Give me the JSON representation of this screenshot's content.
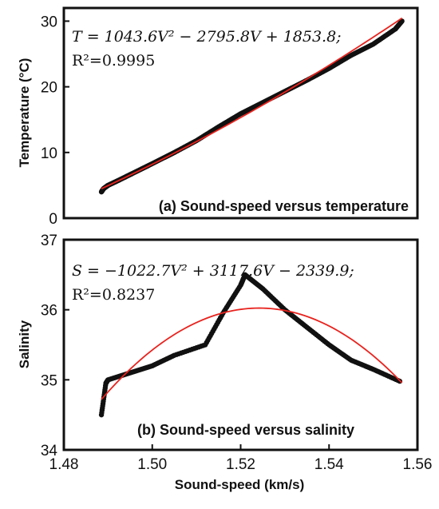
{
  "chart_data": [
    {
      "type": "scatter",
      "panel": "a",
      "title": "(a) Sound-speed versus temperature",
      "ylabel": "Temperature (°C)",
      "xlabel": "",
      "xlim": [
        1.48,
        1.56
      ],
      "ylim": [
        0,
        32
      ],
      "yticks": [
        0,
        10,
        20,
        30
      ],
      "xticks": [],
      "equation": "T = 1043.6V² − 2795.8V + 1853.8;",
      "r2": "R²=0.9995",
      "observed": {
        "x": [
          1.4885,
          1.489,
          1.49,
          1.4925,
          1.4955,
          1.5,
          1.505,
          1.51,
          1.515,
          1.52,
          1.525,
          1.53,
          1.535,
          1.54,
          1.545,
          1.55,
          1.555,
          1.5565
        ],
        "y": [
          4.0,
          4.5,
          5.0,
          5.8,
          6.8,
          8.3,
          10.0,
          11.8,
          13.9,
          15.9,
          17.6,
          19.3,
          21.0,
          22.8,
          24.8,
          26.5,
          28.8,
          30.0
        ]
      },
      "fit": {
        "a": 1043.6,
        "b": -2795.8,
        "c": 1853.8,
        "domain": [
          1.4885,
          1.5565
        ]
      }
    },
    {
      "type": "scatter",
      "panel": "b",
      "title": "(b) Sound-speed versus salinity",
      "ylabel": "Salinity",
      "xlabel": "Sound-speed (km/s)",
      "xlim": [
        1.48,
        1.56
      ],
      "ylim": [
        34,
        37
      ],
      "yticks": [
        34,
        35,
        36,
        37
      ],
      "xticks": [
        1.48,
        1.5,
        1.52,
        1.54,
        1.56
      ],
      "xtick_labels": [
        "1.48",
        "1.50",
        "1.52",
        "1.54",
        "1.56"
      ],
      "equation": "S = −1022.7V² + 3117.6V − 2339.9;",
      "r2": "R²=0.8237",
      "observed": {
        "x": [
          1.4885,
          1.4895,
          1.49,
          1.495,
          1.5,
          1.505,
          1.512,
          1.516,
          1.52,
          1.521,
          1.525,
          1.53,
          1.535,
          1.54,
          1.545,
          1.55,
          1.556
        ],
        "y": [
          34.5,
          34.95,
          35.0,
          35.1,
          35.2,
          35.35,
          35.5,
          35.95,
          36.35,
          36.5,
          36.3,
          36.0,
          35.75,
          35.5,
          35.28,
          35.15,
          34.98
        ]
      },
      "fit": {
        "a": -1022.7,
        "b": 3117.6,
        "c": -2339.9,
        "domain": [
          1.4885,
          1.5565
        ]
      }
    }
  ],
  "colors": {
    "observed": "#111111",
    "fit": "#e8231e",
    "frame": "#111111"
  }
}
